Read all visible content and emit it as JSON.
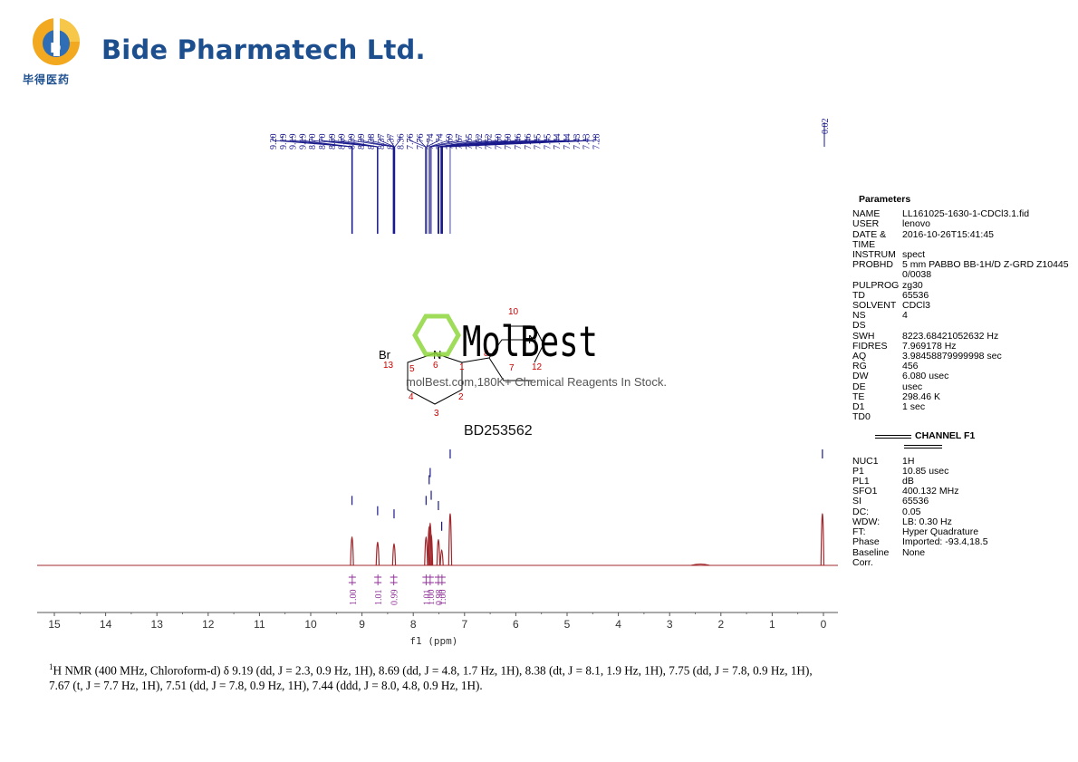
{
  "header": {
    "company_name": "Bide Pharmatech Ltd.",
    "logo_chinese": "毕得医药"
  },
  "watermark": {
    "brand": "MolBest",
    "tagline": "molBest.com,180K+ Chemical Reagents In Stock."
  },
  "molecule": {
    "atom_labels": [
      {
        "text": "Br",
        "color": "#000000"
      },
      {
        "text": "N",
        "color": "#000000"
      },
      {
        "text": "N",
        "color": "#000000"
      },
      {
        "text": "13",
        "color": "#cc0000"
      },
      {
        "text": "5",
        "color": "#cc0000"
      },
      {
        "text": "6",
        "color": "#cc0000"
      },
      {
        "text": "1",
        "color": "#cc0000"
      },
      {
        "text": "4",
        "color": "#cc0000"
      },
      {
        "text": "2",
        "color": "#cc0000"
      },
      {
        "text": "3",
        "color": "#cc0000"
      },
      {
        "text": "8",
        "color": "#cc0000"
      },
      {
        "text": "7",
        "color": "#cc0000"
      },
      {
        "text": "10",
        "color": "#cc0000"
      },
      {
        "text": "12",
        "color": "#cc0000"
      }
    ]
  },
  "compound_id": "BD253562",
  "chart_data": {
    "type": "line",
    "xlabel": "f1 (ppm)",
    "xlim": [
      15.3,
      -0.3
    ],
    "x_reversed": true,
    "grid": false,
    "x_ticks": [
      15,
      14,
      13,
      12,
      11,
      10,
      9,
      8,
      7,
      6,
      5,
      4,
      3,
      2,
      1,
      0
    ],
    "peak_labels": [
      "9.20",
      "9.19",
      "9.19",
      "9.19",
      "8.70",
      "8.70",
      "8.69",
      "8.69",
      "8.39",
      "8.39",
      "8.38",
      "8.37",
      "8.37",
      "8.36",
      "7.76",
      "7.76",
      "7.74",
      "7.74",
      "7.69",
      "7.67",
      "7.65",
      "7.52",
      "7.52",
      "7.50",
      "7.50",
      "7.46",
      "7.46",
      "7.45",
      "7.45",
      "7.44",
      "7.44",
      "7.43",
      "7.43",
      "7.28"
    ],
    "reference_label": "0.02",
    "peaks": [
      {
        "ppm": 9.195,
        "height": 0.55
      },
      {
        "ppm": 8.695,
        "height": 0.45
      },
      {
        "ppm": 8.375,
        "height": 0.42
      },
      {
        "ppm": 7.75,
        "height": 0.55
      },
      {
        "ppm": 7.69,
        "height": 0.75
      },
      {
        "ppm": 7.67,
        "height": 0.82
      },
      {
        "ppm": 7.65,
        "height": 0.6
      },
      {
        "ppm": 7.51,
        "height": 0.5
      },
      {
        "ppm": 7.445,
        "height": 0.3
      },
      {
        "ppm": 7.28,
        "height": 1.0
      },
      {
        "ppm": 2.4,
        "height": 0.025
      },
      {
        "ppm": 0.02,
        "height": 1.0
      }
    ],
    "integrals": [
      {
        "ppm": 9.19,
        "value": "1.00"
      },
      {
        "ppm": 8.69,
        "value": "1.01"
      },
      {
        "ppm": 8.38,
        "value": "0.99"
      },
      {
        "ppm": 7.75,
        "value": "1.01"
      },
      {
        "ppm": 7.67,
        "value": "1.00"
      },
      {
        "ppm": 7.51,
        "value": "0.98"
      },
      {
        "ppm": 7.44,
        "value": "1.00"
      }
    ],
    "colors": {
      "spectrum": "#a0282d",
      "peak_lines": "#1a1a8c",
      "integrals": "#8e2d96",
      "axis": "#555555"
    }
  },
  "parameters": {
    "title": "Parameters",
    "rows": [
      {
        "key": "NAME",
        "value": "LL161025-1630-1-CDCl3.1.fid"
      },
      {
        "key": "USER",
        "value": "lenovo"
      },
      {
        "key": "DATE & TIME",
        "value": "2016-10-26T15:41:45"
      },
      {
        "key": "INSTRUM",
        "value": "spect"
      },
      {
        "key": "PROBHD",
        "value": "5 mm PABBO BB-1H/D Z-GRD Z104450/0038"
      },
      {
        "key": "PULPROG",
        "value": "zg30"
      },
      {
        "key": "TD",
        "value": "65536"
      },
      {
        "key": "SOLVENT",
        "value": "CDCl3"
      },
      {
        "key": "NS",
        "value": "4"
      },
      {
        "key": "DS",
        "value": ""
      },
      {
        "key": "SWH",
        "value": "8223.68421052632 Hz"
      },
      {
        "key": "FIDRES",
        "value": "7.969178 Hz"
      },
      {
        "key": "AQ",
        "value": "3.98458879999998 sec"
      },
      {
        "key": "RG",
        "value": "456"
      },
      {
        "key": "DW",
        "value": "6.080 usec"
      },
      {
        "key": "DE",
        "value": "usec"
      },
      {
        "key": "TE",
        "value": "298.46 K"
      },
      {
        "key": "D1",
        "value": "1 sec"
      },
      {
        "key": "TD0",
        "value": ""
      }
    ],
    "channel_title": "CHANNEL F1",
    "channel_rows": [
      {
        "key": "NUC1",
        "value": "1H"
      },
      {
        "key": "P1",
        "value": "10.85 usec"
      },
      {
        "key": "PL1",
        "value": "dB"
      },
      {
        "key": "SFO1",
        "value": "400.132 MHz"
      },
      {
        "key": "SI",
        "value": "65536"
      },
      {
        "key": "DC:",
        "value": "0.05"
      },
      {
        "key": "WDW:",
        "value": "LB: 0.30 Hz"
      },
      {
        "key": "FT:",
        "value": "Hyper Quadrature"
      },
      {
        "key": "Phase",
        "value": "Imported: -93.4,18.5"
      },
      {
        "key": "Baseline Corr.",
        "value": "None"
      }
    ]
  },
  "nmr_description": {
    "sup": "1",
    "text": "H NMR (400 MHz, Chloroform-d) δ 9.19 (dd, J = 2.3, 0.9 Hz, 1H), 8.69 (dd, J = 4.8, 1.7 Hz, 1H), 8.38 (dt, J = 8.1, 1.9 Hz, 1H), 7.75 (dd, J = 7.8, 0.9 Hz, 1H), 7.67 (t, J = 7.7 Hz, 1H), 7.51 (dd, J = 7.8, 0.9 Hz, 1H), 7.44 (ddd, J = 8.0, 4.8, 0.9 Hz, 1H)."
  }
}
